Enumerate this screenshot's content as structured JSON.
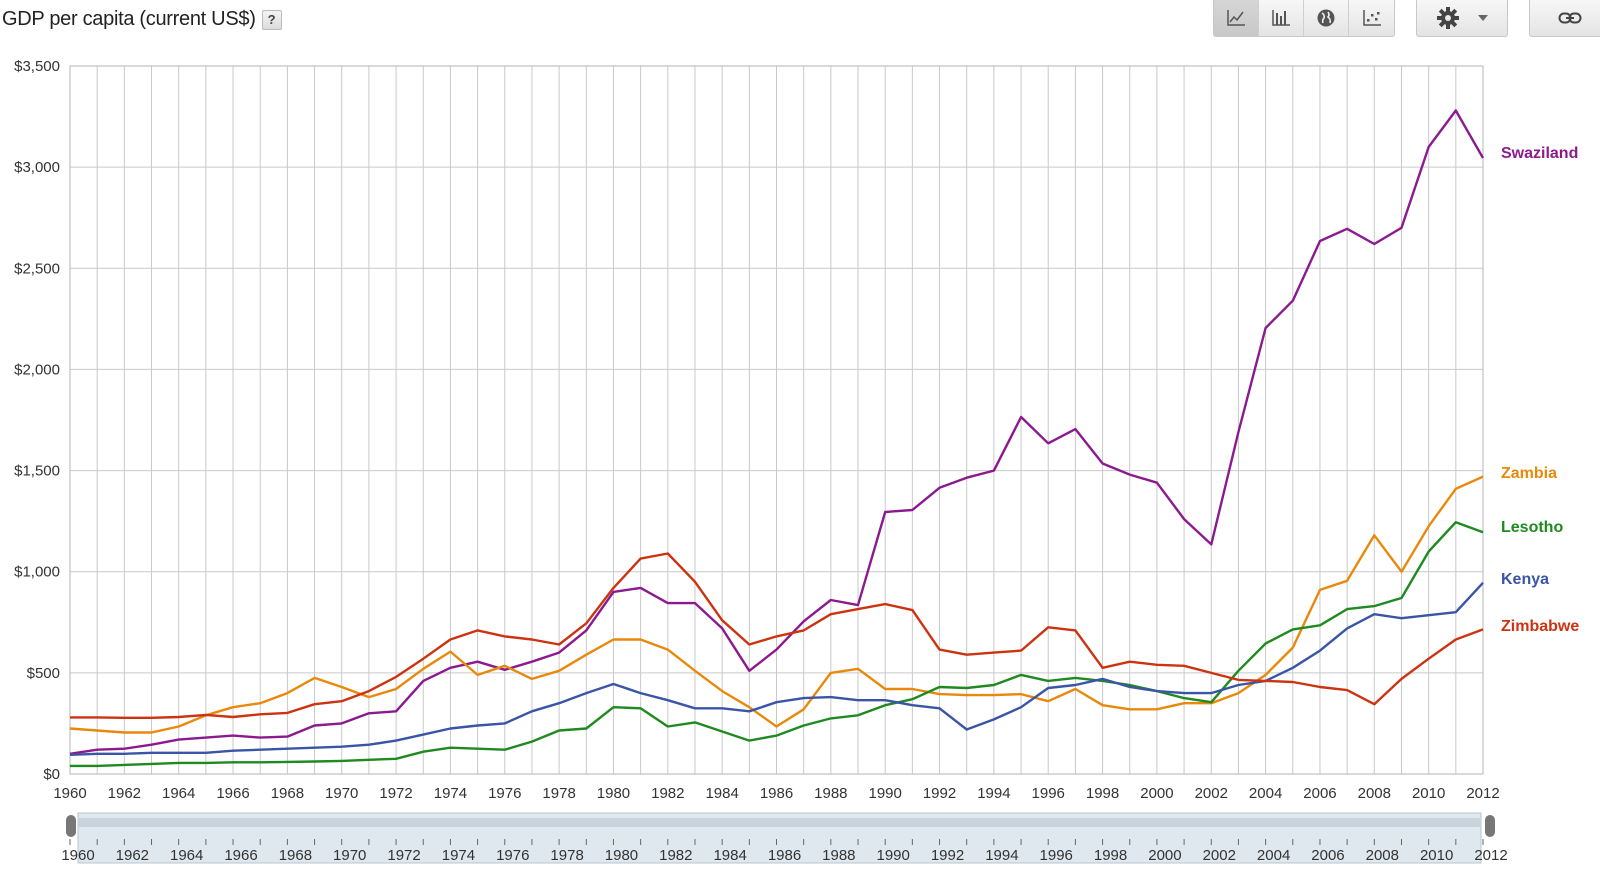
{
  "header": {
    "title": "GDP per capita (current US$)",
    "help_label": "?"
  },
  "toolbar": {
    "view_buttons": [
      {
        "icon": "line-chart-icon",
        "active": true
      },
      {
        "icon": "bar-chart-icon",
        "active": false
      },
      {
        "icon": "globe-map-icon",
        "active": false
      },
      {
        "icon": "scatter-plot-icon",
        "active": false
      }
    ],
    "settings_icon": "gear-icon",
    "dropdown_icon": "caret-down-icon",
    "link_icon": "link-icon"
  },
  "colors": {
    "grid": "#c9c9c9",
    "axis_text": "#333333",
    "slider_track": "#dfe8ef"
  },
  "range_slider": {
    "start": 1960,
    "end": 2012,
    "tick_labels": [
      "1960",
      "1962",
      "1964",
      "1966",
      "1968",
      "1970",
      "1972",
      "1974",
      "1976",
      "1978",
      "1980",
      "1982",
      "1984",
      "1986",
      "1988",
      "1990",
      "1992",
      "1994",
      "1996",
      "1998",
      "2000",
      "2002",
      "2004",
      "2006",
      "2008",
      "2010",
      "2012"
    ]
  },
  "chart_data": {
    "type": "line",
    "title": "GDP per capita (current US$)",
    "xlabel": "",
    "ylabel": "",
    "x": [
      1960,
      1961,
      1962,
      1963,
      1964,
      1965,
      1966,
      1967,
      1968,
      1969,
      1970,
      1971,
      1972,
      1973,
      1974,
      1975,
      1976,
      1977,
      1978,
      1979,
      1980,
      1981,
      1982,
      1983,
      1984,
      1985,
      1986,
      1987,
      1988,
      1989,
      1990,
      1991,
      1992,
      1993,
      1994,
      1995,
      1996,
      1997,
      1998,
      1999,
      2000,
      2001,
      2002,
      2003,
      2004,
      2005,
      2006,
      2007,
      2008,
      2009,
      2010,
      2011,
      2012
    ],
    "xlim": [
      1960,
      2012
    ],
    "ylim": [
      0,
      3500
    ],
    "yticks": [
      0,
      500,
      1000,
      1500,
      2000,
      2500,
      3000,
      3500
    ],
    "ytick_labels": [
      "$0",
      "$500",
      "$1,000",
      "$1,500",
      "$2,000",
      "$2,500",
      "$3,000",
      "$3,500"
    ],
    "xtick_labels": [
      "1960",
      "1962",
      "1964",
      "1966",
      "1968",
      "1970",
      "1972",
      "1974",
      "1976",
      "1978",
      "1980",
      "1982",
      "1984",
      "1986",
      "1988",
      "1990",
      "1992",
      "1994",
      "1996",
      "1998",
      "2000",
      "2002",
      "2004",
      "2006",
      "2008",
      "2010",
      "2012"
    ],
    "grid": true,
    "legend": "inline-right",
    "series": [
      {
        "name": "Swaziland",
        "color": "#8b1a8f",
        "values": [
          100,
          120,
          125,
          145,
          170,
          180,
          190,
          180,
          185,
          240,
          250,
          300,
          310,
          460,
          525,
          555,
          515,
          555,
          600,
          710,
          900,
          920,
          845,
          845,
          720,
          510,
          615,
          755,
          860,
          835,
          1295,
          1305,
          1415,
          1465,
          1500,
          1765,
          1635,
          1705,
          1535,
          1480,
          1440,
          1260,
          1135,
          1690,
          2205,
          2340,
          2635,
          2695,
          2620,
          2700,
          3100,
          3280,
          3045
        ]
      },
      {
        "name": "Zambia",
        "color": "#e8890c",
        "values": [
          225,
          215,
          205,
          205,
          235,
          290,
          330,
          350,
          400,
          475,
          430,
          380,
          420,
          520,
          605,
          490,
          535,
          470,
          510,
          590,
          665,
          665,
          615,
          510,
          410,
          330,
          235,
          320,
          500,
          520,
          420,
          420,
          395,
          390,
          390,
          395,
          360,
          420,
          340,
          320,
          320,
          350,
          350,
          400,
          490,
          625,
          910,
          955,
          1180,
          1000,
          1225,
          1410,
          1470
        ]
      },
      {
        "name": "Lesotho",
        "color": "#1f8a1f",
        "values": [
          40,
          40,
          45,
          50,
          55,
          55,
          58,
          58,
          60,
          62,
          65,
          70,
          75,
          110,
          130,
          125,
          120,
          160,
          215,
          225,
          330,
          325,
          235,
          255,
          210,
          165,
          190,
          240,
          275,
          290,
          340,
          370,
          430,
          425,
          440,
          490,
          460,
          475,
          460,
          440,
          410,
          375,
          355,
          510,
          645,
          715,
          735,
          815,
          830,
          870,
          1100,
          1245,
          1195
        ]
      },
      {
        "name": "Kenya",
        "color": "#3a55a6",
        "values": [
          95,
          100,
          100,
          105,
          105,
          105,
          115,
          120,
          125,
          130,
          135,
          145,
          165,
          195,
          225,
          240,
          250,
          310,
          350,
          400,
          445,
          400,
          365,
          325,
          325,
          310,
          355,
          375,
          380,
          365,
          365,
          340,
          325,
          220,
          270,
          330,
          425,
          440,
          470,
          430,
          410,
          400,
          400,
          440,
          460,
          525,
          610,
          720,
          790,
          770,
          785,
          800,
          945
        ]
      },
      {
        "name": "Zimbabwe",
        "color": "#cc3311",
        "values": [
          280,
          280,
          278,
          278,
          282,
          292,
          282,
          295,
          302,
          345,
          360,
          410,
          480,
          570,
          665,
          710,
          680,
          665,
          640,
          745,
          920,
          1065,
          1090,
          950,
          760,
          640,
          680,
          710,
          790,
          815,
          840,
          810,
          615,
          590,
          600,
          610,
          725,
          710,
          525,
          555,
          540,
          535,
          500,
          465,
          460,
          455,
          430,
          415,
          345,
          470,
          570,
          665,
          715
        ]
      }
    ]
  }
}
